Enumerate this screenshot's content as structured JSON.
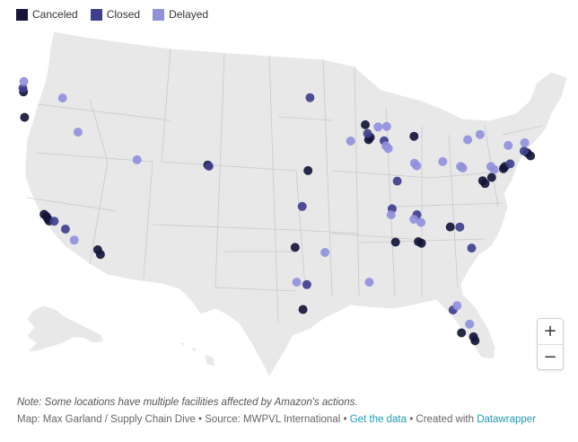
{
  "legend": {
    "items": [
      {
        "label": "Canceled",
        "color": "#15153a"
      },
      {
        "label": "Closed",
        "color": "#3f3f8f"
      },
      {
        "label": "Delayed",
        "color": "#9090dc"
      }
    ]
  },
  "colors": {
    "land": "#e8e8e8",
    "borders": "#c9c9c9",
    "coast": "#ffffff"
  },
  "zoom": {
    "in_label": "+",
    "out_label": "−"
  },
  "note": "Note: Some locations have multiple facilities affected by Amazon's actions.",
  "footer": {
    "credit": "Map: Max Garland / Supply Chain Dive",
    "sep1": " • ",
    "source": "Source: MWPVL International",
    "sep2": " • ",
    "get_data": "Get the data",
    "sep3": " • ",
    "created": "Created with ",
    "tool": "Datawrapper"
  },
  "chart_data": {
    "type": "scatter",
    "title": "",
    "projection": "albers-usa",
    "series": [
      {
        "name": "Canceled",
        "points": [
          {
            "lon": -122.3,
            "lat": 47.6
          },
          {
            "lon": -122.6,
            "lat": 45.6
          },
          {
            "lon": -122.2,
            "lat": 37.7
          },
          {
            "lon": -122.0,
            "lat": 37.5
          },
          {
            "lon": -121.9,
            "lat": 37.3
          },
          {
            "lon": -121.8,
            "lat": 37.1
          },
          {
            "lon": -117.4,
            "lat": 34.1
          },
          {
            "lon": -117.2,
            "lat": 33.7
          },
          {
            "lon": -104.9,
            "lat": 39.7
          },
          {
            "lon": -94.7,
            "lat": 39.0
          },
          {
            "lon": -87.7,
            "lat": 41.9
          },
          {
            "lon": -87.9,
            "lat": 41.7
          },
          {
            "lon": -88.0,
            "lat": 42.9
          },
          {
            "lon": -83.1,
            "lat": 42.3
          },
          {
            "lon": -97.3,
            "lat": 32.8
          },
          {
            "lon": -97.5,
            "lat": 27.8
          },
          {
            "lon": -86.8,
            "lat": 33.5
          },
          {
            "lon": -84.4,
            "lat": 33.7
          },
          {
            "lon": -84.1,
            "lat": 33.6
          },
          {
            "lon": -80.8,
            "lat": 35.2
          },
          {
            "lon": -76.6,
            "lat": 39.4
          },
          {
            "lon": -76.4,
            "lat": 39.2
          },
          {
            "lon": -75.6,
            "lat": 39.8
          },
          {
            "lon": -74.2,
            "lat": 40.7
          },
          {
            "lon": -74.0,
            "lat": 40.9
          },
          {
            "lon": -71.4,
            "lat": 42.4
          },
          {
            "lon": -71.1,
            "lat": 42.2
          },
          {
            "lon": -81.4,
            "lat": 26.6
          },
          {
            "lon": -80.2,
            "lat": 26.4
          },
          {
            "lon": -80.1,
            "lat": 26.1
          }
        ]
      },
      {
        "name": "Closed",
        "points": [
          {
            "lon": -122.3,
            "lat": 47.9
          },
          {
            "lon": -121.3,
            "lat": 37.0
          },
          {
            "lon": -120.3,
            "lat": 36.2
          },
          {
            "lon": -93.3,
            "lat": 44.9
          },
          {
            "lon": -87.9,
            "lat": 42.2
          },
          {
            "lon": -86.3,
            "lat": 41.7
          },
          {
            "lon": -85.6,
            "lat": 38.5
          },
          {
            "lon": -86.6,
            "lat": 36.2
          },
          {
            "lon": -95.9,
            "lat": 36.1
          },
          {
            "lon": -96.7,
            "lat": 29.8
          },
          {
            "lon": -84.1,
            "lat": 35.9
          },
          {
            "lon": -79.8,
            "lat": 35.3
          },
          {
            "lon": -78.9,
            "lat": 33.7
          },
          {
            "lon": -81.9,
            "lat": 28.4
          },
          {
            "lon": -73.4,
            "lat": 41.2
          },
          {
            "lon": -71.7,
            "lat": 42.5
          },
          {
            "lon": -104.8,
            "lat": 39.6
          }
        ]
      },
      {
        "name": "Delayed",
        "points": [
          {
            "lon": -122.1,
            "lat": 48.4
          },
          {
            "lon": -118.5,
            "lat": 46.5
          },
          {
            "lon": -117.5,
            "lat": 43.6
          },
          {
            "lon": -112.0,
            "lat": 40.7
          },
          {
            "lon": -119.6,
            "lat": 35.2
          },
          {
            "lon": -89.8,
            "lat": 41.5
          },
          {
            "lon": -86.7,
            "lat": 42.8
          },
          {
            "lon": -85.8,
            "lat": 42.9
          },
          {
            "lon": -86.2,
            "lat": 41.3
          },
          {
            "lon": -86.0,
            "lat": 41.1
          },
          {
            "lon": -83.5,
            "lat": 40.1
          },
          {
            "lon": -83.3,
            "lat": 39.9
          },
          {
            "lon": -80.5,
            "lat": 40.5
          },
          {
            "lon": -78.7,
            "lat": 40.3
          },
          {
            "lon": -78.5,
            "lat": 40.2
          },
          {
            "lon": -77.5,
            "lat": 42.6
          },
          {
            "lon": -76.1,
            "lat": 43.2
          },
          {
            "lon": -75.5,
            "lat": 40.7
          },
          {
            "lon": -75.2,
            "lat": 40.5
          },
          {
            "lon": -86.8,
            "lat": 35.7
          },
          {
            "lon": -84.5,
            "lat": 35.5
          },
          {
            "lon": -83.8,
            "lat": 35.3
          },
          {
            "lon": -94.3,
            "lat": 32.4
          },
          {
            "lon": -90.2,
            "lat": 30.1
          },
          {
            "lon": -97.7,
            "lat": 30.0
          },
          {
            "lon": -81.4,
            "lat": 28.8
          },
          {
            "lon": -80.4,
            "lat": 27.4
          },
          {
            "lon": -73.3,
            "lat": 42.7
          },
          {
            "lon": -71.5,
            "lat": 43.2
          }
        ]
      }
    ]
  }
}
